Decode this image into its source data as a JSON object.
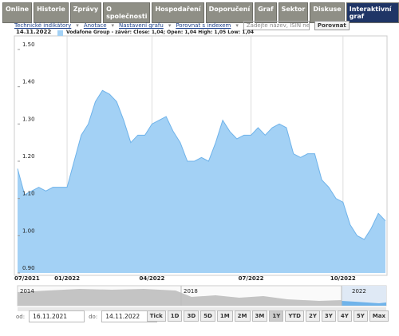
{
  "tabs": [
    "Online",
    "Historie",
    "Zprávy",
    "O společnosti",
    "Hospodaření",
    "Doporučení",
    "Graf",
    "Sektor",
    "Diskuse",
    "Interaktivní graf"
  ],
  "toolbar": {
    "links": [
      "Technické indikátory",
      "Anotace",
      "Nastavení grafu",
      "Porovnat s indexem"
    ],
    "search_placeholder": "Zadejte název, ISIN nebo",
    "compare_button": "Porovnat"
  },
  "chart_data": {
    "type": "area",
    "date": "14.11.2022",
    "series": [
      {
        "name": "Vodafone Group - závěr: Close: 1,04; Open: 1,04 High: 1,05 Low: 1,04",
        "color": "#6fb3ea",
        "fill": "#a3d1f5",
        "values": [
          1.18,
          1.11,
          1.12,
          1.13,
          1.12,
          1.13,
          1.13,
          1.13,
          1.2,
          1.27,
          1.3,
          1.36,
          1.39,
          1.38,
          1.36,
          1.31,
          1.25,
          1.27,
          1.27,
          1.3,
          1.31,
          1.32,
          1.28,
          1.25,
          1.2,
          1.2,
          1.21,
          1.2,
          1.25,
          1.31,
          1.28,
          1.26,
          1.27,
          1.27,
          1.29,
          1.27,
          1.29,
          1.3,
          1.29,
          1.22,
          1.21,
          1.22,
          1.22,
          1.15,
          1.13,
          1.1,
          1.09,
          1.03,
          1.0,
          0.99,
          1.02,
          1.06,
          1.04
        ]
      }
    ],
    "categories": [
      "07/2021",
      null,
      null,
      null,
      null,
      null,
      null,
      "01/2022",
      null,
      null,
      null,
      null,
      null,
      null,
      null,
      null,
      null,
      null,
      null,
      "04/2022",
      null,
      null,
      null,
      null,
      null,
      null,
      null,
      null,
      null,
      null,
      null,
      null,
      null,
      "07/2022",
      null,
      null,
      null,
      null,
      null,
      null,
      null,
      null,
      null,
      null,
      null,
      null,
      "10/2022",
      null,
      null,
      null,
      null,
      null,
      null
    ],
    "ylim": [
      0.9,
      1.5
    ],
    "yticks": [
      {
        "value": 0.9,
        "label": "0.90"
      },
      {
        "value": 1.0,
        "label": "1.00"
      },
      {
        "value": 1.1,
        "label": "1.10"
      },
      {
        "value": 1.2,
        "label": "1.20"
      },
      {
        "value": 1.3,
        "label": "1.30"
      },
      {
        "value": 1.4,
        "label": "1.40"
      },
      {
        "value": 1.5,
        "label": "1.50"
      }
    ],
    "grid": "x"
  },
  "navigator": {
    "labels": [
      "2014",
      "2018",
      "2022"
    ]
  },
  "range": {
    "from_label": "od:",
    "from": "16.11.2021",
    "to_label": "do:",
    "to": "14.11.2022"
  },
  "periods": [
    "Tick",
    "1D",
    "3D",
    "5D",
    "1M",
    "2M",
    "3M",
    "1Y",
    "YTD",
    "2Y",
    "3Y",
    "4Y",
    "5Y",
    "Max"
  ],
  "active_period": "1Y"
}
